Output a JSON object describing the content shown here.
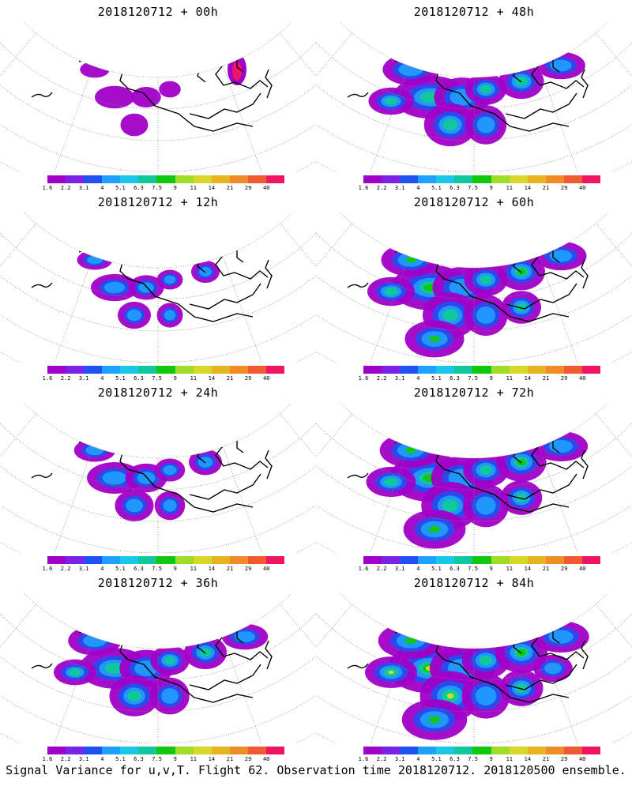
{
  "panels": [
    {
      "title": "2018120712 + 00h",
      "level": 0,
      "spread": 0.5,
      "hot": true
    },
    {
      "title": "2018120712 + 12h",
      "level": 1,
      "spread": 0.6,
      "hot": false
    },
    {
      "title": "2018120712 + 24h",
      "level": 1,
      "spread": 0.7,
      "hot": false
    },
    {
      "title": "2018120712 + 36h",
      "level": 2,
      "spread": 0.9,
      "hot": false
    },
    {
      "title": "2018120712 + 48h",
      "level": 2,
      "spread": 0.95,
      "hot": false
    },
    {
      "title": "2018120712 + 60h",
      "level": 3,
      "spread": 1.0,
      "hot": false
    },
    {
      "title": "2018120712 + 72h",
      "level": 3,
      "spread": 1.05,
      "hot": false
    },
    {
      "title": "2018120712 + 84h",
      "level": 4,
      "spread": 1.1,
      "hot": false
    }
  ],
  "colorbar": {
    "labels": [
      "1.6",
      "2.2",
      "3.1",
      "4",
      "5.1",
      "6.3",
      "7.5",
      "9",
      "11",
      "14",
      "21",
      "29",
      "40"
    ],
    "colors": [
      "#a000c8",
      "#7a22e6",
      "#2050f0",
      "#1ea0ff",
      "#18c8e6",
      "#10c89c",
      "#10c810",
      "#a0dc28",
      "#d8d828",
      "#e6b41e",
      "#f08c28",
      "#f05a32",
      "#f01464"
    ]
  },
  "footer": "Signal Variance for u,v,T. Flight 62. Observation time 2018120712. 2018120500 ensemble."
}
